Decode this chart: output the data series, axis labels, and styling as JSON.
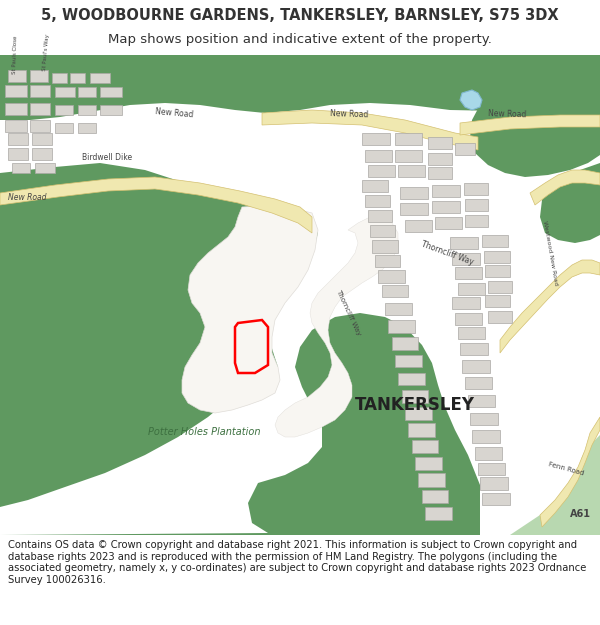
{
  "title": "5, WOODBOURNE GARDENS, TANKERSLEY, BARNSLEY, S75 3DX",
  "subtitle": "Map shows position and indicative extent of the property.",
  "copyright_text": "Contains OS data © Crown copyright and database right 2021. This information is subject to Crown copyright and database rights 2023 and is reproduced with the permission of HM Land Registry. The polygons (including the associated geometry, namely x, y co-ordinates) are subject to Crown copyright and database rights 2023 Ordnance Survey 100026316.",
  "bg_color": "#ffffff",
  "map_bg": "#f2f0ee",
  "green_color": "#5f9960",
  "road_yellow_fill": "#f0e8b0",
  "road_yellow_edge": "#d4c070",
  "road_white": "#ffffff",
  "building_color": "#d8d5d0",
  "building_outline": "#aaa8a4",
  "water_color": "#a8d8e8",
  "light_green": "#b8d8b0",
  "plot_color": "#ff0000",
  "title_fontsize": 10.5,
  "subtitle_fontsize": 9.5,
  "copyright_fontsize": 7.2,
  "text_color": "#333333",
  "label_color": "#444444"
}
